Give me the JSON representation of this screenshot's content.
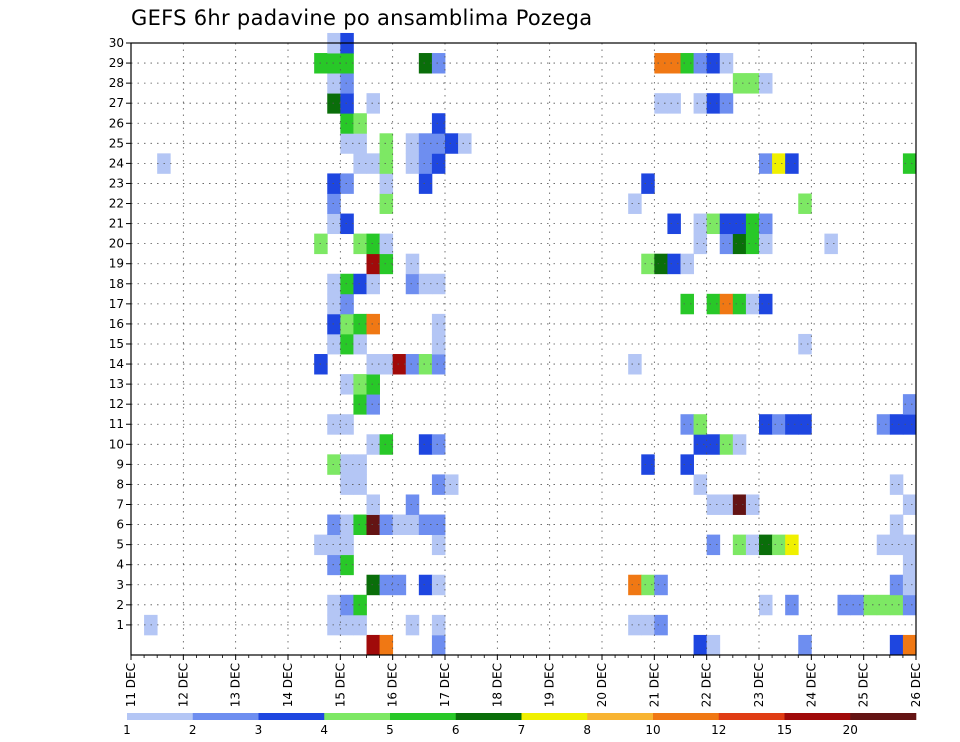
{
  "chart_data": {
    "type": "heatmap",
    "title": "GEFS 6hr padavine po ansamblima Pozega",
    "x_ticks": [
      "11 DEC",
      "12 DEC",
      "13 DEC",
      "14 DEC",
      "15 DEC",
      "16 DEC",
      "17 DEC",
      "18 DEC",
      "19 DEC",
      "20 DEC",
      "21 DEC",
      "22 DEC",
      "23 DEC",
      "24 DEC",
      "25 DEC",
      "26 DEC"
    ],
    "y_ticks": [
      1,
      2,
      3,
      4,
      5,
      6,
      7,
      8,
      9,
      10,
      11,
      12,
      13,
      14,
      15,
      16,
      17,
      18,
      19,
      20,
      21,
      22,
      23,
      24,
      25,
      26,
      27,
      28,
      29,
      30
    ],
    "xlim": [
      "11 DEC 00Z",
      "26 DEC 00Z"
    ],
    "ylim": [
      0,
      30
    ],
    "time_step_hours": 6,
    "grid": true,
    "colorbar": {
      "labels": [
        "1",
        "2",
        "3",
        "4",
        "5",
        "6",
        "7",
        "8",
        "10",
        "12",
        "15",
        "20"
      ],
      "colors": [
        "#b4c6f5",
        "#6e8ef0",
        "#1e46e0",
        "#7de864",
        "#28c828",
        "#0a6e0a",
        "#f0f000",
        "#f8b432",
        "#f07814",
        "#e03c14",
        "#a00a0a",
        "#641414"
      ]
    },
    "member_steps": {
      "30": [
        [
          14.75,
          1
        ],
        [
          15.0,
          3
        ]
      ],
      "29": [
        [
          14.5,
          5
        ],
        [
          14.75,
          5
        ],
        [
          15.0,
          5
        ],
        [
          16.5,
          6
        ],
        [
          16.75,
          2
        ],
        [
          21.0,
          9
        ],
        [
          21.25,
          9
        ],
        [
          21.5,
          5
        ],
        [
          21.75,
          2
        ],
        [
          22.0,
          3
        ],
        [
          22.25,
          1
        ]
      ],
      "28": [
        [
          14.75,
          1
        ],
        [
          15.0,
          2
        ],
        [
          22.5,
          4
        ],
        [
          22.75,
          4
        ],
        [
          23.0,
          1
        ]
      ],
      "27": [
        [
          14.75,
          6
        ],
        [
          15.0,
          3
        ],
        [
          15.5,
          1
        ],
        [
          21.0,
          1
        ],
        [
          21.25,
          1
        ],
        [
          21.75,
          1
        ],
        [
          22.0,
          3
        ],
        [
          22.25,
          2
        ]
      ],
      "26": [
        [
          15.0,
          5
        ],
        [
          15.25,
          4
        ],
        [
          16.75,
          3
        ]
      ],
      "25": [
        [
          15.0,
          1
        ],
        [
          15.25,
          1
        ],
        [
          15.75,
          4
        ],
        [
          16.25,
          1
        ],
        [
          16.5,
          2
        ],
        [
          16.75,
          2
        ],
        [
          17.0,
          3
        ],
        [
          17.25,
          1
        ]
      ],
      "24": [
        [
          11.5,
          1
        ],
        [
          15.25,
          1
        ],
        [
          15.5,
          1
        ],
        [
          15.75,
          4
        ],
        [
          16.25,
          1
        ],
        [
          16.5,
          2
        ],
        [
          16.75,
          3
        ],
        [
          23.0,
          2
        ],
        [
          23.25,
          7
        ],
        [
          23.5,
          3
        ],
        [
          25.75,
          5
        ]
      ],
      "23": [
        [
          14.75,
          3
        ],
        [
          15.0,
          2
        ],
        [
          15.75,
          1
        ],
        [
          16.5,
          3
        ],
        [
          20.75,
          3
        ]
      ],
      "22": [
        [
          14.75,
          2
        ],
        [
          15.75,
          4
        ],
        [
          20.5,
          1
        ],
        [
          23.75,
          4
        ]
      ],
      "21": [
        [
          14.75,
          1
        ],
        [
          15.0,
          3
        ],
        [
          21.25,
          3
        ],
        [
          21.75,
          1
        ],
        [
          22.0,
          4
        ],
        [
          22.25,
          3
        ],
        [
          22.5,
          3
        ],
        [
          22.75,
          5
        ],
        [
          23.0,
          2
        ]
      ],
      "20": [
        [
          14.5,
          4
        ],
        [
          15.25,
          4
        ],
        [
          15.5,
          5
        ],
        [
          15.75,
          1
        ],
        [
          21.75,
          1
        ],
        [
          22.25,
          2
        ],
        [
          22.5,
          6
        ],
        [
          22.75,
          5
        ],
        [
          23.0,
          1
        ],
        [
          24.25,
          1
        ]
      ],
      "19": [
        [
          15.5,
          11
        ],
        [
          15.75,
          5
        ],
        [
          16.25,
          1
        ],
        [
          20.75,
          4
        ],
        [
          21.0,
          6
        ],
        [
          21.25,
          3
        ],
        [
          21.5,
          1
        ]
      ],
      "18": [
        [
          14.75,
          1
        ],
        [
          15.0,
          5
        ],
        [
          15.25,
          3
        ],
        [
          15.5,
          1
        ],
        [
          16.25,
          2
        ],
        [
          16.5,
          1
        ],
        [
          16.75,
          1
        ]
      ],
      "17": [
        [
          14.75,
          1
        ],
        [
          15.0,
          2
        ],
        [
          21.5,
          5
        ],
        [
          22.0,
          5
        ],
        [
          22.25,
          9
        ],
        [
          22.5,
          5
        ],
        [
          22.75,
          1
        ],
        [
          23.0,
          3
        ]
      ],
      "16": [
        [
          14.75,
          3
        ],
        [
          15.0,
          4
        ],
        [
          15.25,
          5
        ],
        [
          15.5,
          9
        ],
        [
          16.75,
          1
        ]
      ],
      "15": [
        [
          14.75,
          1
        ],
        [
          15.0,
          5
        ],
        [
          15.25,
          1
        ],
        [
          16.75,
          1
        ],
        [
          23.75,
          1
        ]
      ],
      "14": [
        [
          14.5,
          3
        ],
        [
          15.5,
          1
        ],
        [
          15.75,
          1
        ],
        [
          16.0,
          11
        ],
        [
          16.25,
          2
        ],
        [
          16.5,
          4
        ],
        [
          16.75,
          2
        ],
        [
          20.5,
          1
        ]
      ],
      "13": [
        [
          15.0,
          1
        ],
        [
          15.25,
          4
        ],
        [
          15.5,
          5
        ]
      ],
      "12": [
        [
          15.25,
          5
        ],
        [
          15.5,
          2
        ],
        [
          25.75,
          2
        ]
      ],
      "11": [
        [
          14.75,
          1
        ],
        [
          15.0,
          1
        ],
        [
          21.5,
          2
        ],
        [
          21.75,
          4
        ],
        [
          23.0,
          3
        ],
        [
          23.25,
          2
        ],
        [
          23.5,
          3
        ],
        [
          23.75,
          3
        ],
        [
          25.25,
          2
        ],
        [
          25.5,
          3
        ],
        [
          25.75,
          3
        ]
      ],
      "10": [
        [
          15.5,
          1
        ],
        [
          15.75,
          5
        ],
        [
          16.5,
          3
        ],
        [
          16.75,
          2
        ],
        [
          21.75,
          3
        ],
        [
          22.0,
          3
        ],
        [
          22.25,
          4
        ],
        [
          22.5,
          1
        ]
      ],
      "9": [
        [
          14.75,
          4
        ],
        [
          15.0,
          1
        ],
        [
          15.25,
          1
        ],
        [
          20.75,
          3
        ],
        [
          21.5,
          3
        ]
      ],
      "8": [
        [
          15.0,
          1
        ],
        [
          15.25,
          1
        ],
        [
          16.75,
          2
        ],
        [
          17.0,
          1
        ],
        [
          21.75,
          1
        ],
        [
          25.5,
          1
        ]
      ],
      "7": [
        [
          15.5,
          1
        ],
        [
          16.25,
          2
        ],
        [
          22.0,
          1
        ],
        [
          22.25,
          1
        ],
        [
          22.5,
          12
        ],
        [
          22.75,
          1
        ],
        [
          25.75,
          1
        ]
      ],
      "6": [
        [
          14.75,
          2
        ],
        [
          15.0,
          1
        ],
        [
          15.25,
          5
        ],
        [
          15.5,
          12
        ],
        [
          15.75,
          2
        ],
        [
          16.0,
          1
        ],
        [
          16.25,
          1
        ],
        [
          16.5,
          2
        ],
        [
          16.75,
          2
        ],
        [
          25.5,
          1
        ]
      ],
      "5": [
        [
          14.5,
          1
        ],
        [
          14.75,
          1
        ],
        [
          15.0,
          1
        ],
        [
          16.75,
          1
        ],
        [
          22.0,
          2
        ],
        [
          22.5,
          4
        ],
        [
          22.75,
          1
        ],
        [
          23.0,
          6
        ],
        [
          23.25,
          4
        ],
        [
          23.5,
          7
        ],
        [
          25.25,
          1
        ],
        [
          25.5,
          1
        ],
        [
          25.75,
          1
        ]
      ],
      "4": [
        [
          14.75,
          2
        ],
        [
          15.0,
          5
        ],
        [
          25.75,
          1
        ]
      ],
      "3": [
        [
          15.5,
          6
        ],
        [
          15.75,
          2
        ],
        [
          16.0,
          2
        ],
        [
          16.5,
          3
        ],
        [
          16.75,
          1
        ],
        [
          20.5,
          9
        ],
        [
          20.75,
          4
        ],
        [
          21.0,
          2
        ],
        [
          25.5,
          2
        ],
        [
          25.75,
          1
        ]
      ],
      "2": [
        [
          14.75,
          1
        ],
        [
          15.0,
          2
        ],
        [
          15.25,
          5
        ],
        [
          23.0,
          1
        ],
        [
          23.5,
          2
        ],
        [
          24.5,
          2
        ],
        [
          24.75,
          2
        ],
        [
          25.0,
          4
        ],
        [
          25.25,
          4
        ],
        [
          25.5,
          4
        ],
        [
          25.75,
          2
        ]
      ],
      "1": [
        [
          11.25,
          1
        ],
        [
          14.75,
          1
        ],
        [
          15.0,
          1
        ],
        [
          15.25,
          1
        ],
        [
          16.25,
          1
        ],
        [
          16.75,
          1
        ],
        [
          20.5,
          1
        ],
        [
          20.75,
          1
        ],
        [
          21.0,
          2
        ]
      ],
      "0": [
        [
          15.5,
          11
        ],
        [
          15.75,
          9
        ],
        [
          16.75,
          2
        ],
        [
          21.75,
          3
        ],
        [
          22.0,
          1
        ],
        [
          23.75,
          2
        ],
        [
          25.5,
          3
        ],
        [
          25.75,
          9
        ]
      ]
    }
  }
}
